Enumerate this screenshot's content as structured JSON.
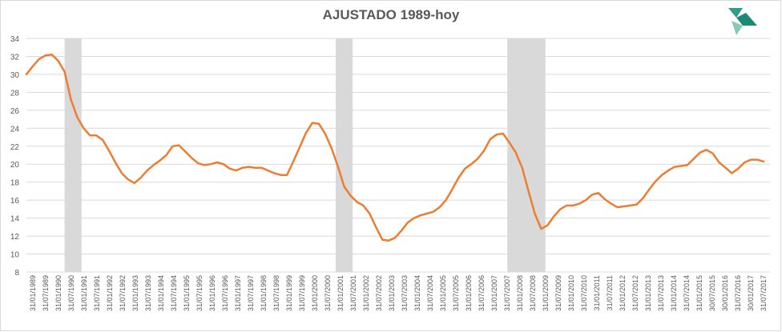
{
  "chart_data": {
    "type": "line",
    "title": "AJUSTADO 1989-hoy",
    "xlabel": "",
    "ylabel": "",
    "ylim": [
      8,
      34
    ],
    "yticks": [
      8,
      10,
      12,
      14,
      16,
      18,
      20,
      22,
      24,
      26,
      28,
      30,
      32,
      34
    ],
    "grid": true,
    "legend": "none",
    "series_color": "#ED7D31",
    "band_color": "#D9D9D9",
    "recession_bands": [
      {
        "start": "1990-07",
        "end": "1991-03"
      },
      {
        "start": "2001-03",
        "end": "2001-11"
      },
      {
        "start": "2007-12",
        "end": "2009-06"
      }
    ],
    "xtick_labels": [
      "31/01/1989",
      "31/07/1989",
      "31/01/1990",
      "31/07/1990",
      "31/01/1991",
      "31/07/1991",
      "31/01/1992",
      "31/07/1992",
      "31/01/1993",
      "31/07/1993",
      "31/01/1994",
      "31/07/1994",
      "31/01/1995",
      "31/07/1995",
      "31/01/1996",
      "31/07/1996",
      "31/01/1997",
      "31/07/1997",
      "31/01/1998",
      "31/07/1998",
      "31/01/1999",
      "31/07/1999",
      "31/01/2000",
      "31/07/2000",
      "31/01/2001",
      "31/07/2001",
      "31/01/2002",
      "31/07/2002",
      "31/01/2003",
      "31/07/2003",
      "31/01/2004",
      "31/07/2004",
      "31/01/2005",
      "31/07/2005",
      "31/01/2006",
      "31/07/2006",
      "31/01/2007",
      "31/07/2007",
      "31/01/2008",
      "31/07/2008",
      "31/01/2009",
      "31/07/2009",
      "31/01/2010",
      "31/07/2010",
      "31/01/2011",
      "31/07/2011",
      "31/01/2012",
      "31/07/2012",
      "31/01/2013",
      "31/07/2013",
      "31/01/2014",
      "31/07/2014",
      "31/01/2015",
      "30/07/2015",
      "30/01/2016",
      "31/07/2016",
      "30/01/2017",
      "31/07/2017"
    ],
    "series": [
      {
        "x": [
          "1989-01",
          "1989-04",
          "1989-07",
          "1989-10",
          "1990-01",
          "1990-04",
          "1990-07",
          "1990-10",
          "1991-01",
          "1991-04",
          "1991-07",
          "1991-10",
          "1992-01",
          "1992-04",
          "1992-07",
          "1992-10",
          "1993-01",
          "1993-04",
          "1993-07",
          "1993-10",
          "1994-01",
          "1994-04",
          "1994-07",
          "1994-10",
          "1995-01",
          "1995-04",
          "1995-07",
          "1995-10",
          "1996-01",
          "1996-04",
          "1996-07",
          "1996-10",
          "1997-01",
          "1997-04",
          "1997-07",
          "1997-10",
          "1998-01",
          "1998-04",
          "1998-07",
          "1998-10",
          "1999-01",
          "1999-04",
          "1999-07",
          "1999-10",
          "2000-01",
          "2000-04",
          "2000-07",
          "2000-10",
          "2001-01",
          "2001-04",
          "2001-07",
          "2001-10",
          "2002-01",
          "2002-04",
          "2002-07",
          "2002-10",
          "2003-01",
          "2003-04",
          "2003-07",
          "2003-10",
          "2004-01",
          "2004-04",
          "2004-07",
          "2004-10",
          "2005-01",
          "2005-04",
          "2005-07",
          "2005-10",
          "2006-01",
          "2006-04",
          "2006-07",
          "2006-10",
          "2007-01",
          "2007-04",
          "2007-07",
          "2007-10",
          "2008-01",
          "2008-04",
          "2008-07",
          "2008-10",
          "2009-01",
          "2009-04",
          "2009-07",
          "2009-10",
          "2010-01",
          "2010-04",
          "2010-07",
          "2010-10",
          "2011-01",
          "2011-04",
          "2011-07",
          "2011-10",
          "2012-01",
          "2012-04",
          "2012-07",
          "2012-10",
          "2013-01",
          "2013-04",
          "2013-07",
          "2013-10",
          "2014-01",
          "2014-04",
          "2014-07",
          "2014-10",
          "2015-01",
          "2015-04",
          "2015-07",
          "2015-10",
          "2016-01",
          "2016-04",
          "2016-07",
          "2016-10",
          "2017-01",
          "2017-04",
          "2017-07",
          "2017-10",
          "2018-01"
        ],
        "values": [
          30.0,
          30.9,
          31.7,
          32.1,
          32.2,
          31.5,
          30.3,
          27.2,
          25.2,
          24.0,
          23.2,
          23.2,
          22.7,
          21.5,
          20.2,
          19.0,
          18.3,
          17.9,
          18.5,
          19.3,
          19.9,
          20.4,
          21.0,
          22.0,
          22.1,
          21.4,
          20.7,
          20.1,
          19.9,
          20.0,
          20.2,
          20.0,
          19.5,
          19.3,
          19.6,
          19.7,
          19.6,
          19.6,
          19.3,
          19.0,
          18.8,
          18.8,
          20.3,
          21.9,
          23.5,
          24.6,
          24.5,
          23.4,
          21.8,
          19.8,
          17.5,
          16.5,
          15.8,
          15.4,
          14.5,
          13.0,
          11.6,
          11.5,
          11.8,
          12.6,
          13.5,
          14.0,
          14.3,
          14.5,
          14.7,
          15.2,
          16.0,
          17.2,
          18.5,
          19.5,
          20.0,
          20.6,
          21.5,
          22.8,
          23.3,
          23.4,
          22.4,
          21.3,
          19.6,
          17.0,
          14.5,
          12.8,
          13.2,
          14.2,
          15.0,
          15.4,
          15.4,
          15.6,
          16.0,
          16.6,
          16.8,
          16.1,
          15.6,
          15.2,
          15.3,
          15.4,
          15.5,
          16.2,
          17.2,
          18.1,
          18.8,
          19.3,
          19.7,
          19.8,
          19.9,
          20.6,
          21.3,
          21.6,
          21.2,
          20.2,
          19.6,
          19.0,
          19.5,
          20.2,
          20.5,
          20.5,
          20.3
        ]
      }
    ]
  }
}
